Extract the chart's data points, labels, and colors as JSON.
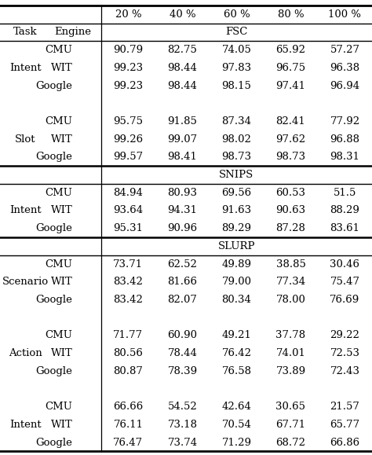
{
  "col_headers": [
    "20 %",
    "40 %",
    "60 %",
    "80 %",
    "100 %"
  ],
  "task_label": "Task",
  "engine_label": "Engine",
  "sections": [
    {
      "section_label": "FSC",
      "groups": [
        {
          "task": "Intent",
          "rows": [
            {
              "engine": "CMU",
              "values": [
                "90.79",
                "82.75",
                "74.05",
                "65.92",
                "57.27"
              ]
            },
            {
              "engine": "WIT",
              "values": [
                "99.23",
                "98.44",
                "97.83",
                "96.75",
                "96.38"
              ]
            },
            {
              "engine": "Google",
              "values": [
                "99.23",
                "98.44",
                "98.15",
                "97.41",
                "96.94"
              ]
            }
          ]
        },
        {
          "task": "Slot",
          "rows": [
            {
              "engine": "CMU",
              "values": [
                "95.75",
                "91.85",
                "87.34",
                "82.41",
                "77.92"
              ]
            },
            {
              "engine": "WIT",
              "values": [
                "99.26",
                "99.07",
                "98.02",
                "97.62",
                "96.88"
              ]
            },
            {
              "engine": "Google",
              "values": [
                "99.57",
                "98.41",
                "98.73",
                "98.73",
                "98.31"
              ]
            }
          ]
        }
      ]
    },
    {
      "section_label": "SNIPS",
      "groups": [
        {
          "task": "Intent",
          "rows": [
            {
              "engine": "CMU",
              "values": [
                "84.94",
                "80.93",
                "69.56",
                "60.53",
                "51.5"
              ]
            },
            {
              "engine": "WIT",
              "values": [
                "93.64",
                "94.31",
                "91.63",
                "90.63",
                "88.29"
              ]
            },
            {
              "engine": "Google",
              "values": [
                "95.31",
                "90.96",
                "89.29",
                "87.28",
                "83.61"
              ]
            }
          ]
        }
      ]
    },
    {
      "section_label": "SLURP",
      "groups": [
        {
          "task": "Scenario",
          "rows": [
            {
              "engine": "CMU",
              "values": [
                "73.71",
                "62.52",
                "49.89",
                "38.85",
                "30.46"
              ]
            },
            {
              "engine": "WIT",
              "values": [
                "83.42",
                "81.66",
                "79.00",
                "77.34",
                "75.47"
              ]
            },
            {
              "engine": "Google",
              "values": [
                "83.42",
                "82.07",
                "80.34",
                "78.00",
                "76.69"
              ]
            }
          ]
        },
        {
          "task": "Action",
          "rows": [
            {
              "engine": "CMU",
              "values": [
                "71.77",
                "60.90",
                "49.21",
                "37.78",
                "29.22"
              ]
            },
            {
              "engine": "WIT",
              "values": [
                "80.56",
                "78.44",
                "76.42",
                "74.01",
                "72.53"
              ]
            },
            {
              "engine": "Google",
              "values": [
                "80.87",
                "78.39",
                "76.58",
                "73.89",
                "72.43"
              ]
            }
          ]
        },
        {
          "task": "Intent",
          "rows": [
            {
              "engine": "CMU",
              "values": [
                "66.66",
                "54.52",
                "42.64",
                "30.65",
                "21.57"
              ]
            },
            {
              "engine": "WIT",
              "values": [
                "76.11",
                "73.18",
                "70.54",
                "67.71",
                "65.77"
              ]
            },
            {
              "engine": "Google",
              "values": [
                "76.47",
                "73.74",
                "71.29",
                "68.72",
                "66.86"
              ]
            }
          ]
        }
      ]
    }
  ],
  "bg_color": "#ffffff",
  "text_color": "#000000",
  "line_color": "#000000",
  "font_size": 9.5,
  "divx": 0.272
}
